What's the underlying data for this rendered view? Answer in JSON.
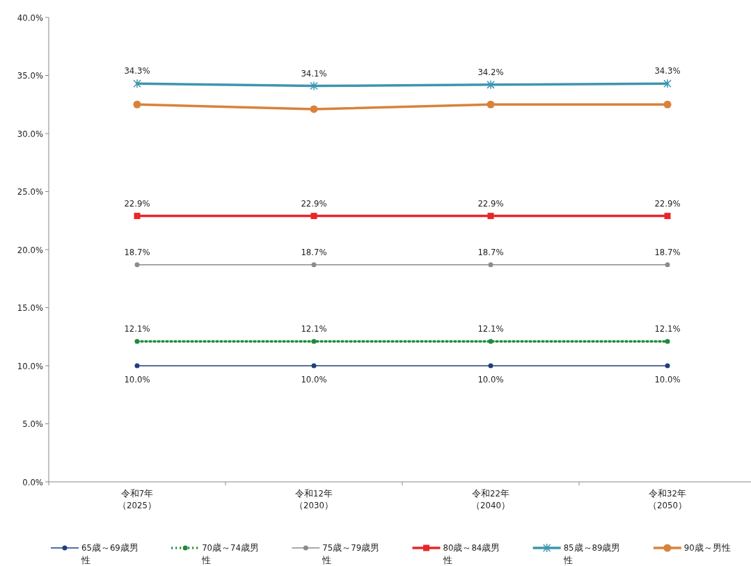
{
  "chart_data": {
    "type": "line",
    "categories": [
      "令和7年（2025）",
      "令和12年（2030）",
      "令和22年（2040）",
      "令和32年（2050）"
    ],
    "ylim": [
      0,
      40
    ],
    "yticks": [
      {
        "value": 0,
        "label": "0.0%"
      },
      {
        "value": 5,
        "label": "5.0%"
      },
      {
        "value": 10,
        "label": "10.0%"
      },
      {
        "value": 15,
        "label": "15.0%"
      },
      {
        "value": 20,
        "label": "20.0%"
      },
      {
        "value": 25,
        "label": "25.0%"
      },
      {
        "value": 30,
        "label": "30.0%"
      },
      {
        "value": 35,
        "label": "35.0%"
      },
      {
        "value": 40,
        "label": "40.0%"
      }
    ],
    "grid": false,
    "legend": "bottom",
    "series": [
      {
        "name": "65歳～69歳男性",
        "color": "#1f3f7a",
        "marker": "circle",
        "line_style": "solid",
        "values": [
          10.0,
          10.0,
          10.0,
          10.0
        ],
        "value_labels": [
          "10.0%",
          "10.0%",
          "10.0%",
          "10.0%"
        ]
      },
      {
        "name": "70歳～74歳男性",
        "color": "#1e8c3a",
        "marker": "circle",
        "line_style": "dotted",
        "values": [
          12.1,
          12.1,
          12.1,
          12.1
        ],
        "value_labels": [
          "12.1%",
          "12.1%",
          "12.1%",
          "12.1%"
        ]
      },
      {
        "name": "75歳～79歳男性",
        "color": "#8c8c8c",
        "marker": "circle",
        "line_style": "solid",
        "values": [
          18.7,
          18.7,
          18.7,
          18.7
        ],
        "value_labels": [
          "18.7%",
          "18.7%",
          "18.7%",
          "18.7%"
        ]
      },
      {
        "name": "80歳～84歳男性",
        "color": "#e8262a",
        "marker": "square",
        "line_style": "solid",
        "values": [
          22.9,
          22.9,
          22.9,
          22.9
        ],
        "value_labels": [
          "22.9%",
          "22.9%",
          "22.9%",
          "22.9%"
        ]
      },
      {
        "name": "85歳～89歳男性",
        "color": "#3b96b0",
        "marker": "cross",
        "line_style": "solid",
        "values": [
          34.3,
          34.1,
          34.2,
          34.3
        ],
        "value_labels": [
          "34.3%",
          "34.1%",
          "34.2%",
          "34.3%"
        ]
      },
      {
        "name": "90歳～男性",
        "color": "#d9823b",
        "marker": "circle",
        "line_style": "solid",
        "values": [
          32.5,
          32.1,
          32.5,
          32.5
        ]
      }
    ]
  }
}
